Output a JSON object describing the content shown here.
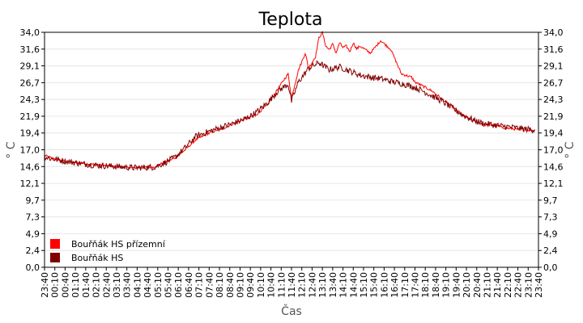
{
  "chart_data": {
    "type": "line",
    "title": "Teplota",
    "xlabel": "Čas",
    "ylabel": "° C",
    "ylabel_right": "° C",
    "ylim": [
      0,
      34.0
    ],
    "yticks": [
      "0,0",
      "2,4",
      "4,9",
      "7,3",
      "9,7",
      "12,1",
      "14,6",
      "17,0",
      "19,4",
      "21,9",
      "24,3",
      "26,7",
      "29,1",
      "31,6",
      "34,0"
    ],
    "xticks": [
      "23:40",
      "00:10",
      "00:40",
      "01:10",
      "01:40",
      "02:10",
      "02:40",
      "03:10",
      "03:40",
      "04:10",
      "04:40",
      "05:10",
      "05:40",
      "06:10",
      "06:40",
      "07:10",
      "07:40",
      "08:10",
      "08:40",
      "09:10",
      "09:40",
      "10:10",
      "10:40",
      "11:10",
      "11:40",
      "12:10",
      "12:40",
      "13:10",
      "13:40",
      "14:10",
      "14:40",
      "15:10",
      "15:40",
      "16:10",
      "16:40",
      "17:10",
      "17:40",
      "18:10",
      "18:40",
      "19:10",
      "19:40",
      "20:10",
      "20:40",
      "21:10",
      "21:40",
      "22:10",
      "22:40",
      "23:10",
      "23:40"
    ],
    "grid": true,
    "legend_position": "bottom-left",
    "series": [
      {
        "name": "Bouřňák HS přízemní",
        "color": "#ff0000",
        "x": [
          -20,
          0,
          60,
          120,
          180,
          240,
          300,
          330,
          360,
          390,
          420,
          450,
          480,
          510,
          540,
          570,
          600,
          630,
          660,
          690,
          700,
          720,
          740,
          750,
          770,
          780,
          790,
          800,
          810,
          820,
          830,
          840,
          850,
          860,
          870,
          880,
          890,
          900,
          930,
          960,
          990,
          1020,
          1050,
          1060,
          1080,
          1110,
          1140,
          1170,
          1200,
          1230,
          1260,
          1290,
          1320,
          1350,
          1380,
          1410
        ],
        "y": [
          16.2,
          15.8,
          15.2,
          14.9,
          14.6,
          14.4,
          14.5,
          15.2,
          15.8,
          17.0,
          18.4,
          19.2,
          19.8,
          20.3,
          21.0,
          21.5,
          22.2,
          23.5,
          25.8,
          28.0,
          24.5,
          28.5,
          31.0,
          28.8,
          30.5,
          33.2,
          34.0,
          32.0,
          31.5,
          32.3,
          31.0,
          32.5,
          31.8,
          32.0,
          31.2,
          32.5,
          31.6,
          32.0,
          31.0,
          32.8,
          31.5,
          28.0,
          27.5,
          26.8,
          26.3,
          25.5,
          24.3,
          23.2,
          22.0,
          21.2,
          20.7,
          20.5,
          20.2,
          20.0,
          19.9,
          19.8
        ]
      },
      {
        "name": "Bouřňák HS",
        "color": "#800000",
        "x": [
          -20,
          0,
          60,
          120,
          180,
          240,
          300,
          330,
          360,
          390,
          420,
          450,
          480,
          510,
          540,
          570,
          600,
          630,
          660,
          690,
          700,
          720,
          750,
          780,
          810,
          840,
          870,
          900,
          930,
          960,
          990,
          1020,
          1050,
          1080,
          1110,
          1140,
          1170,
          1200,
          1230,
          1260,
          1290,
          1320,
          1350,
          1380,
          1410
        ],
        "y": [
          16.0,
          15.7,
          15.2,
          14.8,
          14.6,
          14.4,
          14.5,
          15.1,
          15.9,
          17.3,
          18.9,
          19.5,
          20.0,
          20.5,
          21.0,
          21.6,
          22.5,
          23.8,
          25.5,
          26.5,
          24.0,
          26.8,
          28.8,
          29.6,
          28.6,
          29.0,
          28.4,
          27.8,
          27.5,
          27.3,
          26.9,
          26.6,
          26.2,
          25.6,
          24.8,
          24.0,
          23.0,
          22.0,
          21.3,
          20.8,
          20.6,
          20.4,
          20.2,
          20.0,
          19.9
        ]
      }
    ]
  }
}
